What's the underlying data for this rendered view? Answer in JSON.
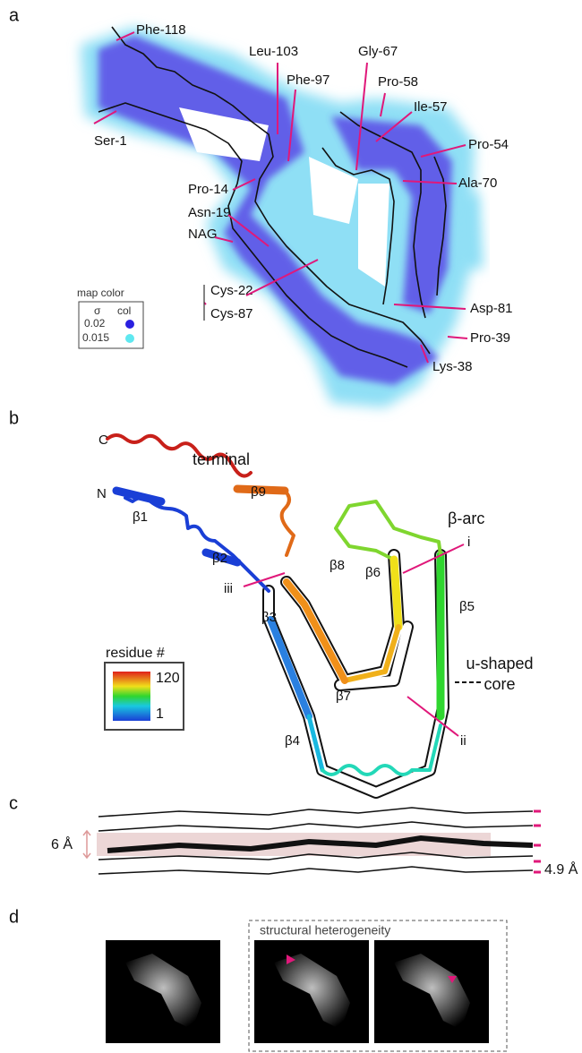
{
  "panels": {
    "a": {
      "label": "a",
      "residues": [
        "Phe-118",
        "Leu-103",
        "Phe-97",
        "Gly-67",
        "Pro-58",
        "Ile-57",
        "Pro-54",
        "Ser-1",
        "Ala-70",
        "Pro-14",
        "Asn-19",
        "NAG",
        "Cys-22",
        "Cys-87",
        "Asp-81",
        "Pro-39",
        "Lys-38"
      ],
      "legend": {
        "title": "map color",
        "sigma_header": "σ",
        "color_header": "col",
        "levels": [
          "0.02",
          "0.015"
        ]
      }
    },
    "b": {
      "label": "b",
      "termini": [
        "C",
        "N"
      ],
      "terminal": "terminal",
      "strands": [
        "β1",
        "β2",
        "β3",
        "β4",
        "β5",
        "β6",
        "β7",
        "β8",
        "β9"
      ],
      "arc": "β-arc",
      "sites": [
        "i",
        "ii",
        "iii"
      ],
      "core": [
        "u-shaped",
        "core"
      ],
      "colorbar": {
        "title": "residue #",
        "max": "120",
        "min": "1"
      }
    },
    "c": {
      "label": "c",
      "height": "6 Å",
      "spacing": "4.9 Å"
    },
    "d": {
      "label": "d",
      "caption": "structural heterogeneity"
    }
  }
}
